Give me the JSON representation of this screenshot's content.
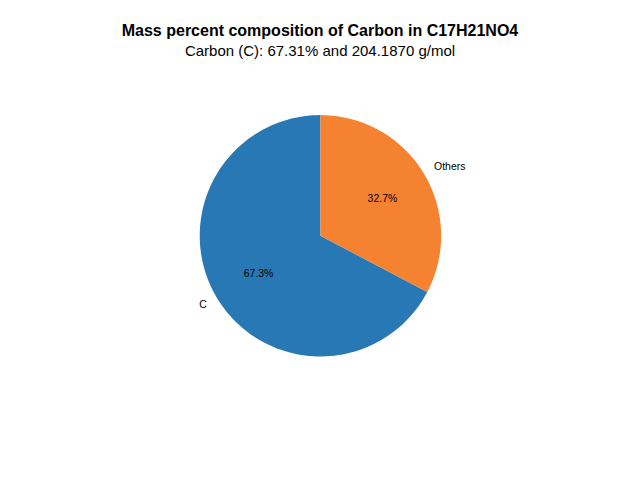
{
  "chart_data": {
    "type": "pie",
    "title": "Mass percent composition of Carbon in C17H21NO4",
    "subtitle": "Carbon (C): 67.31% and 204.1870 g/mol",
    "categories": [
      "C",
      "Others"
    ],
    "values": [
      67.3,
      32.7
    ],
    "value_labels": [
      "67.3%",
      "32.7%"
    ],
    "colors": [
      "#2878b5",
      "#f58231"
    ],
    "data_labels": true
  }
}
